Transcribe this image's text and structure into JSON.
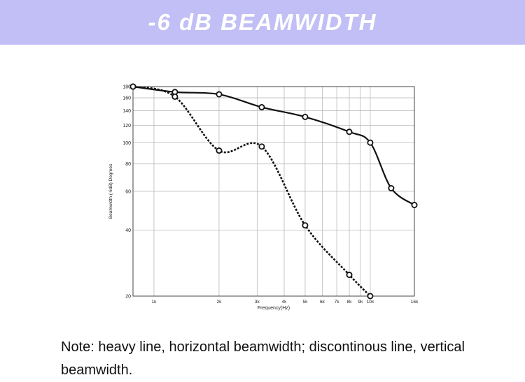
{
  "header": {
    "title": "-6 dB BEAMWIDTH"
  },
  "note": {
    "text": "Note: heavy line, horizontal beamwidth; discontinous line, vertical beamwidth."
  },
  "colors": {
    "banner": "#c1bff5",
    "line": "#111111",
    "grid": "#b8b8b8"
  },
  "chart_data": {
    "type": "line",
    "title": "",
    "xlabel": "Frequency(Hz)",
    "ylabel": "Beamwidth (-6dB) Degrees",
    "x_scale": "log",
    "y_scale": "log",
    "xlim": [
      800,
      16000
    ],
    "ylim": [
      20,
      180
    ],
    "grid": true,
    "x_ticks": [
      {
        "value": 1000,
        "label": "1k"
      },
      {
        "value": 2000,
        "label": "2k"
      },
      {
        "value": 3000,
        "label": "3k"
      },
      {
        "value": 4000,
        "label": "4k"
      },
      {
        "value": 5000,
        "label": "5k"
      },
      {
        "value": 6000,
        "label": "6k"
      },
      {
        "value": 7000,
        "label": "7k"
      },
      {
        "value": 8000,
        "label": "8k"
      },
      {
        "value": 9000,
        "label": "9k"
      },
      {
        "value": 10000,
        "label": "10k"
      },
      {
        "value": 16000,
        "label": "16k"
      }
    ],
    "y_ticks": [
      {
        "value": 20,
        "label": "20"
      },
      {
        "value": 40,
        "label": "40"
      },
      {
        "value": 60,
        "label": "60"
      },
      {
        "value": 80,
        "label": "80"
      },
      {
        "value": 100,
        "label": "100"
      },
      {
        "value": 120,
        "label": "120"
      },
      {
        "value": 140,
        "label": "140"
      },
      {
        "value": 160,
        "label": "160"
      },
      {
        "value": 180,
        "label": "180"
      }
    ],
    "series": [
      {
        "style": "solid",
        "x": [
          800,
          1250,
          2000,
          3150,
          5000,
          8000,
          10000,
          12500,
          16000
        ],
        "y": [
          180,
          170,
          166,
          145,
          131,
          112,
          100,
          62,
          52
        ]
      },
      {
        "style": "dashed",
        "x": [
          800,
          1250,
          2000,
          3150,
          5000,
          8000,
          10000
        ],
        "y": [
          180,
          162,
          92,
          96,
          42,
          25,
          20
        ]
      }
    ]
  }
}
